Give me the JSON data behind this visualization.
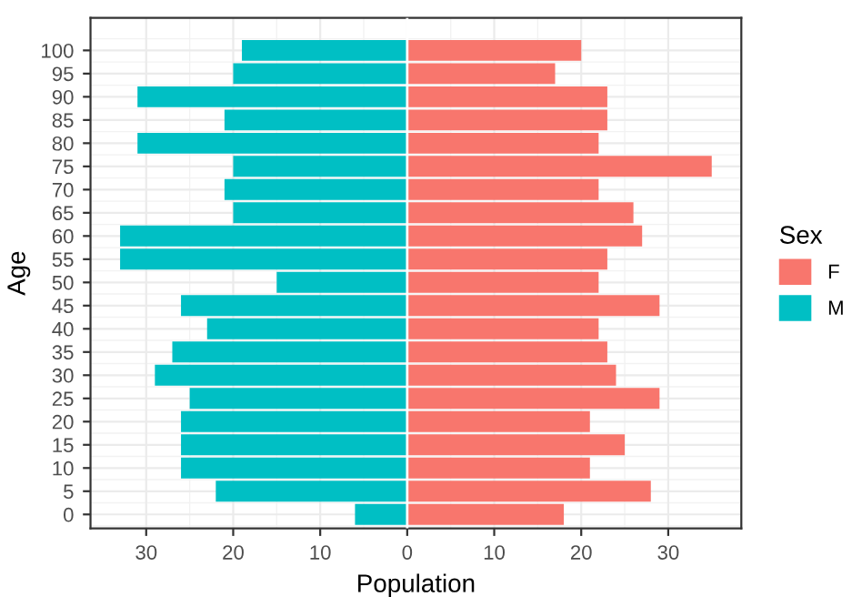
{
  "chart_data": {
    "type": "bar",
    "orientation": "horizontal",
    "stacked": true,
    "xlabel": "Population",
    "ylabel": "Age",
    "legend_title": "Sex",
    "legend": "right",
    "grid": true,
    "categories": [
      "100",
      "95",
      "90",
      "85",
      "80",
      "75",
      "70",
      "65",
      "60",
      "55",
      "50",
      "45",
      "40",
      "35",
      "30",
      "25",
      "20",
      "15",
      "10",
      "5",
      "0"
    ],
    "series": [
      {
        "name": "F",
        "color": "#f8766d",
        "values": [
          20,
          17,
          23,
          23,
          22,
          35,
          22,
          26,
          27,
          23,
          22,
          29,
          22,
          23,
          24,
          29,
          21,
          25,
          21,
          28,
          18
        ]
      },
      {
        "name": "M",
        "color": "#00bfc4",
        "values": [
          -19,
          -20,
          -31,
          -21,
          -31,
          -20,
          -21,
          -20,
          -33,
          -33,
          -15,
          -26,
          -23,
          -27,
          -29,
          -25,
          -26,
          -26,
          -26,
          -22,
          -6
        ]
      }
    ],
    "xlim": [
      -36.4,
      38.4
    ],
    "xticks": [
      {
        "value": -30,
        "label": "30"
      },
      {
        "value": -20,
        "label": "20"
      },
      {
        "value": -10,
        "label": "10"
      },
      0,
      10,
      20,
      30
    ]
  }
}
